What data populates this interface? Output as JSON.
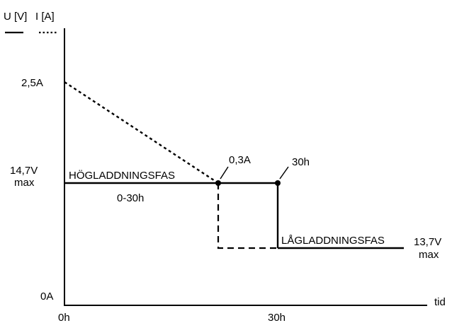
{
  "legend": {
    "voltage_label": "U [V]",
    "current_label": "I [A]"
  },
  "axes": {
    "y_tick_current_max": "2,5A",
    "y_tick_voltage_high": "14,7V",
    "y_tick_voltage_high_suffix": "max",
    "y_tick_zero": "0A",
    "x_tick_start": "0h",
    "x_tick_end": "30h",
    "x_axis_label": "tid"
  },
  "annotations": {
    "high_phase": "HÖGLADDNINGSFAS",
    "high_phase_time": "0-30h",
    "current_point": "0,3A",
    "time_point": "30h",
    "low_phase": "LÅGLADDNINGSFAS",
    "voltage_low": "13,7V",
    "voltage_low_suffix": "max"
  },
  "styles": {
    "voltage_line": "solid",
    "current_line": "dashed"
  },
  "colors": {
    "ink": "#000000",
    "background": "#ffffff"
  }
}
